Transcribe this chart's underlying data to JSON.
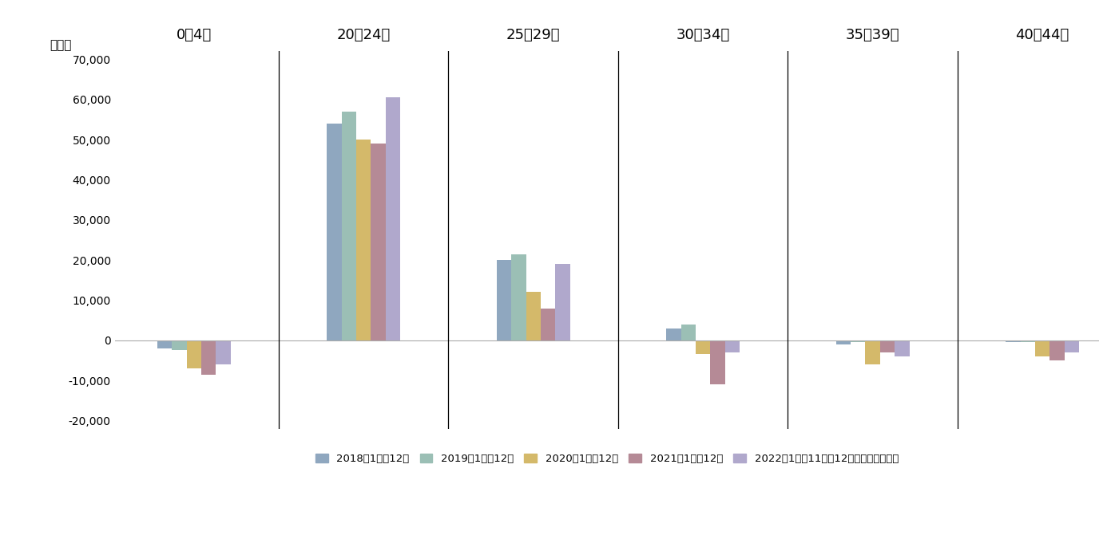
{
  "groups": [
    "0～4歳",
    "20～24歳",
    "25～29歳",
    "30～34歳",
    "35～39歳",
    "40～44歳"
  ],
  "series": [
    {
      "label": "2018年1月～12月",
      "color": "#8fa7bf",
      "values": [
        -2000,
        54000,
        20000,
        3000,
        -1000,
        -500
      ]
    },
    {
      "label": "2019年1月～12月",
      "color": "#9bbfb5",
      "values": [
        -2500,
        57000,
        21500,
        4000,
        -500,
        -500
      ]
    },
    {
      "label": "2020年1月～12月",
      "color": "#d4b96a",
      "values": [
        -7000,
        50000,
        12000,
        -3500,
        -6000,
        -4000
      ]
    },
    {
      "label": "2021年1月～12月",
      "color": "#b58a96",
      "values": [
        -8500,
        49000,
        8000,
        -11000,
        -3000,
        -5000
      ]
    },
    {
      "label": "2022年1月～11月（12か月換算推定値）",
      "color": "#b0a8cc",
      "values": [
        -6000,
        60500,
        19000,
        -3000,
        -4000,
        -3000
      ]
    }
  ],
  "ylim": [
    -22000,
    72000
  ],
  "yticks": [
    -20000,
    -10000,
    0,
    10000,
    20000,
    30000,
    40000,
    50000,
    60000,
    70000
  ],
  "ylabel": "（人）",
  "bg_color": "#ffffff",
  "bar_width": 0.13,
  "figsize": [
    13.91,
    6.76
  ],
  "group_width_ratios": [
    1,
    1,
    1,
    1,
    1,
    1
  ]
}
